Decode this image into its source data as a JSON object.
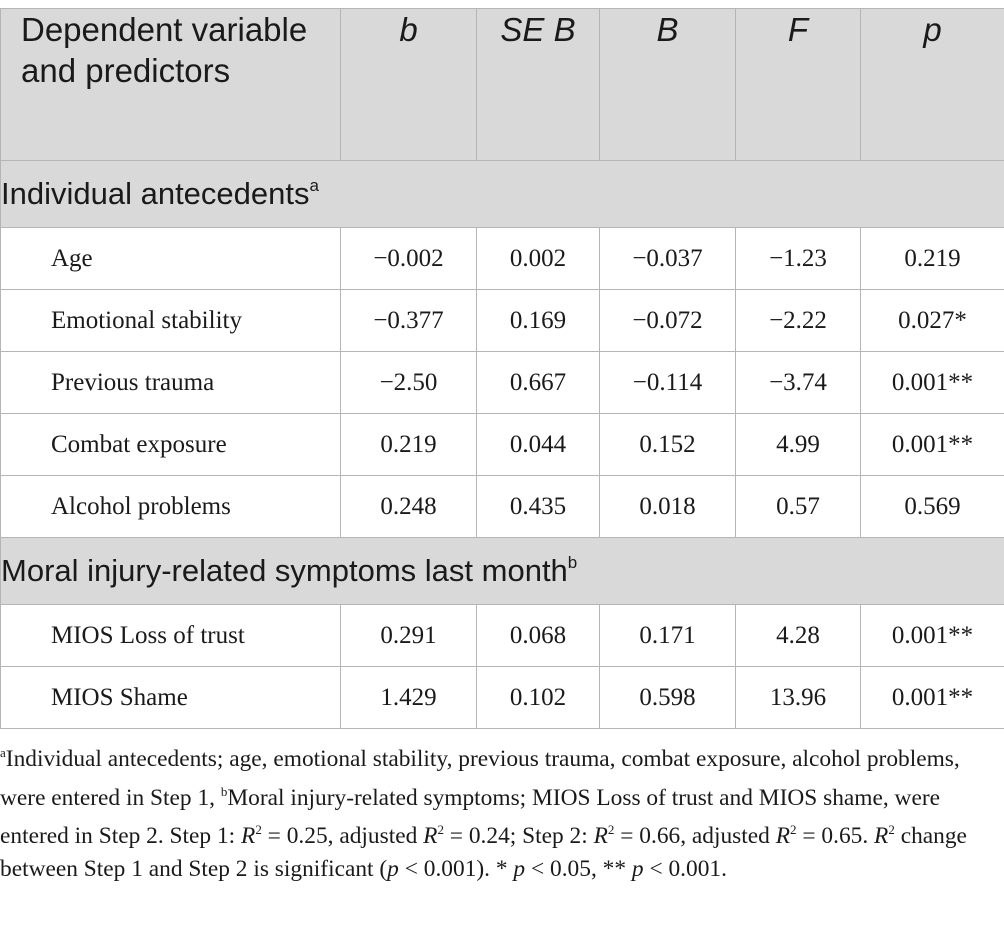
{
  "table": {
    "headers": {
      "col0": "Dependent variable and predictors",
      "col1": "b",
      "col2": "SE B",
      "col3": "B",
      "col4": "F",
      "col5": "p"
    },
    "sections": [
      {
        "title": "Individual antecedents",
        "marker": "a",
        "rows": [
          {
            "label": "Age",
            "b": "−0.002",
            "se": "0.002",
            "beta": "−0.037",
            "f": "−1.23",
            "p": "0.219"
          },
          {
            "label": "Emotional stability",
            "b": "−0.377",
            "se": "0.169",
            "beta": "−0.072",
            "f": "−2.22",
            "p": "0.027*"
          },
          {
            "label": "Previous trauma",
            "b": "−2.50",
            "se": "0.667",
            "beta": "−0.114",
            "f": "−3.74",
            "p": "0.001**"
          },
          {
            "label": "Combat exposure",
            "b": "0.219",
            "se": "0.044",
            "beta": "0.152",
            "f": "4.99",
            "p": "0.001**"
          },
          {
            "label": "Alcohol problems",
            "b": "0.248",
            "se": "0.435",
            "beta": "0.018",
            "f": "0.57",
            "p": "0.569"
          }
        ]
      },
      {
        "title": "Moral injury-related symptoms last month",
        "marker": "b",
        "rows": [
          {
            "label": "MIOS Loss of trust",
            "b": "0.291",
            "se": "0.068",
            "beta": "0.171",
            "f": "4.28",
            "p": "0.001**"
          },
          {
            "label": "MIOS Shame",
            "b": "1.429",
            "se": "0.102",
            "beta": "0.598",
            "f": "13.96",
            "p": "0.001**"
          }
        ]
      }
    ]
  },
  "footnote": {
    "a_marker": "a",
    "a_text": "Individual antecedents; age, emotional stability, previous trauma, combat exposure, alcohol problems, were entered in Step 1, ",
    "b_marker": "b",
    "b_text": "Moral injury-related symptoms; MIOS Loss of trust and MIOS shame, were entered in Step 2. Step 1: ",
    "R": "R",
    "two": "2",
    "s1_val": " = 0.25, adjusted ",
    "s1_adj": " = 0.24; Step 2: ",
    "s2_val": " = 0.66, adjusted ",
    "s2_adj": " = 0.65. ",
    "change": " change between Step 1 and Step 2 is significant (",
    "p": "p",
    "sig1": " < 0.001). * ",
    "sig2": " < 0.05, ** ",
    "sig3": " < 0.001."
  }
}
